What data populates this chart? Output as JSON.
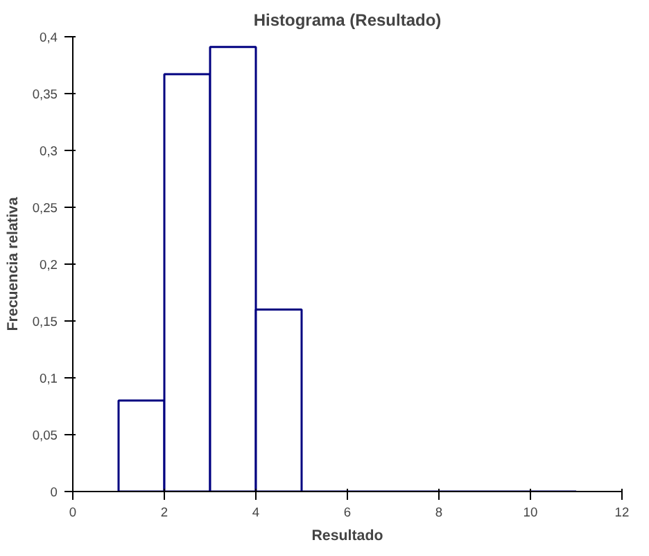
{
  "chart_data": {
    "type": "histogram",
    "title": "Histograma (Resultado)",
    "xlabel": "Resultado",
    "ylabel": "Frecuencia relativa",
    "bins": [
      1,
      2,
      3,
      4,
      5,
      6,
      7,
      8,
      9,
      10,
      11
    ],
    "values": [
      0.08,
      0.367,
      0.391,
      0.16,
      0,
      0,
      0,
      0,
      0,
      0
    ],
    "color": "#000080",
    "xlim": [
      0,
      12
    ],
    "xticks": [
      0,
      2,
      4,
      6,
      8,
      10,
      12
    ],
    "ylim": [
      0,
      0.4
    ],
    "yticks": [
      0,
      {
        "value": 0.05,
        "label": "0,05"
      },
      {
        "value": 0.1,
        "label": "0,1"
      },
      {
        "value": 0.15,
        "label": "0,15"
      },
      {
        "value": 0.2,
        "label": "0,2"
      },
      {
        "value": 0.25,
        "label": "0,25"
      },
      {
        "value": 0.3,
        "label": "0,3"
      },
      {
        "value": 0.35,
        "label": "0,35"
      },
      {
        "value": 0.4,
        "label": "0,4"
      }
    ],
    "grid": false
  }
}
